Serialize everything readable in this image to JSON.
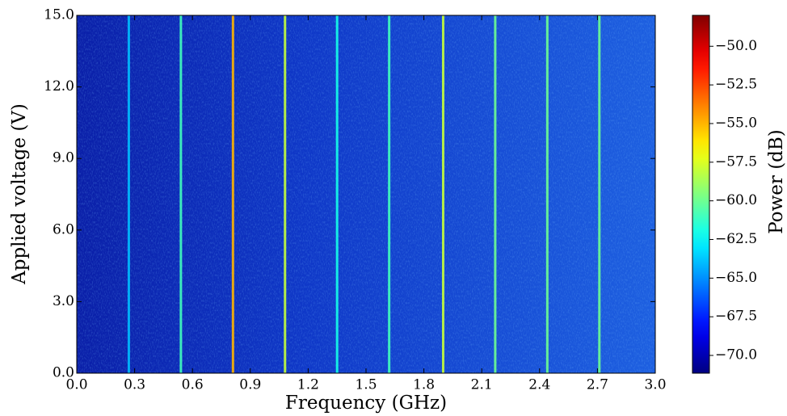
{
  "chart_data": {
    "type": "heatmap",
    "xlabel": "Frequency (GHz)",
    "ylabel": "Applied voltage (V)",
    "colorbar_label": "Power (dB)",
    "colormap": "jet",
    "xlim": [
      0,
      3
    ],
    "ylim": [
      0,
      15
    ],
    "clim": [
      -71.15,
      -48.0
    ],
    "xticks": [
      {
        "value": 0,
        "label": "0.0"
      },
      {
        "value": 0.3,
        "label": "0.3"
      },
      {
        "value": 0.6,
        "label": "0.6"
      },
      {
        "value": 0.9,
        "label": "0.9"
      },
      {
        "value": 1.2,
        "label": "1.2"
      },
      {
        "value": 1.5,
        "label": "1.5"
      },
      {
        "value": 1.8,
        "label": "1.8"
      },
      {
        "value": 2.1,
        "label": "2.1"
      },
      {
        "value": 2.4,
        "label": "2.4"
      },
      {
        "value": 2.7,
        "label": "2.7"
      },
      {
        "value": 3,
        "label": "3.0"
      }
    ],
    "yticks": [
      {
        "value": 0,
        "label": "0.0"
      },
      {
        "value": 3,
        "label": "3.0"
      },
      {
        "value": 6,
        "label": "6.0"
      },
      {
        "value": 9,
        "label": "9.0"
      },
      {
        "value": 12,
        "label": "12.0"
      },
      {
        "value": 15,
        "label": "15.0"
      }
    ],
    "cticks": [
      {
        "value": -70,
        "label": "−70.0"
      },
      {
        "value": -67.5,
        "label": "−67.5"
      },
      {
        "value": -65,
        "label": "−65.0"
      },
      {
        "value": -62.5,
        "label": "−62.5"
      },
      {
        "value": -60,
        "label": "−60.0"
      },
      {
        "value": -57.5,
        "label": "−57.5"
      },
      {
        "value": -55,
        "label": "−55.0"
      },
      {
        "value": -52.5,
        "label": "−52.5"
      },
      {
        "value": -50,
        "label": "−50.0"
      }
    ],
    "lines": {
      "x": [
        0.27,
        0.54,
        0.81,
        1.08,
        1.35,
        1.62,
        1.9,
        2.17,
        2.44,
        2.71
      ],
      "values": [
        -64,
        -61,
        -55,
        -58,
        -62,
        -61,
        -58,
        -60,
        -60,
        -60
      ]
    }
  }
}
